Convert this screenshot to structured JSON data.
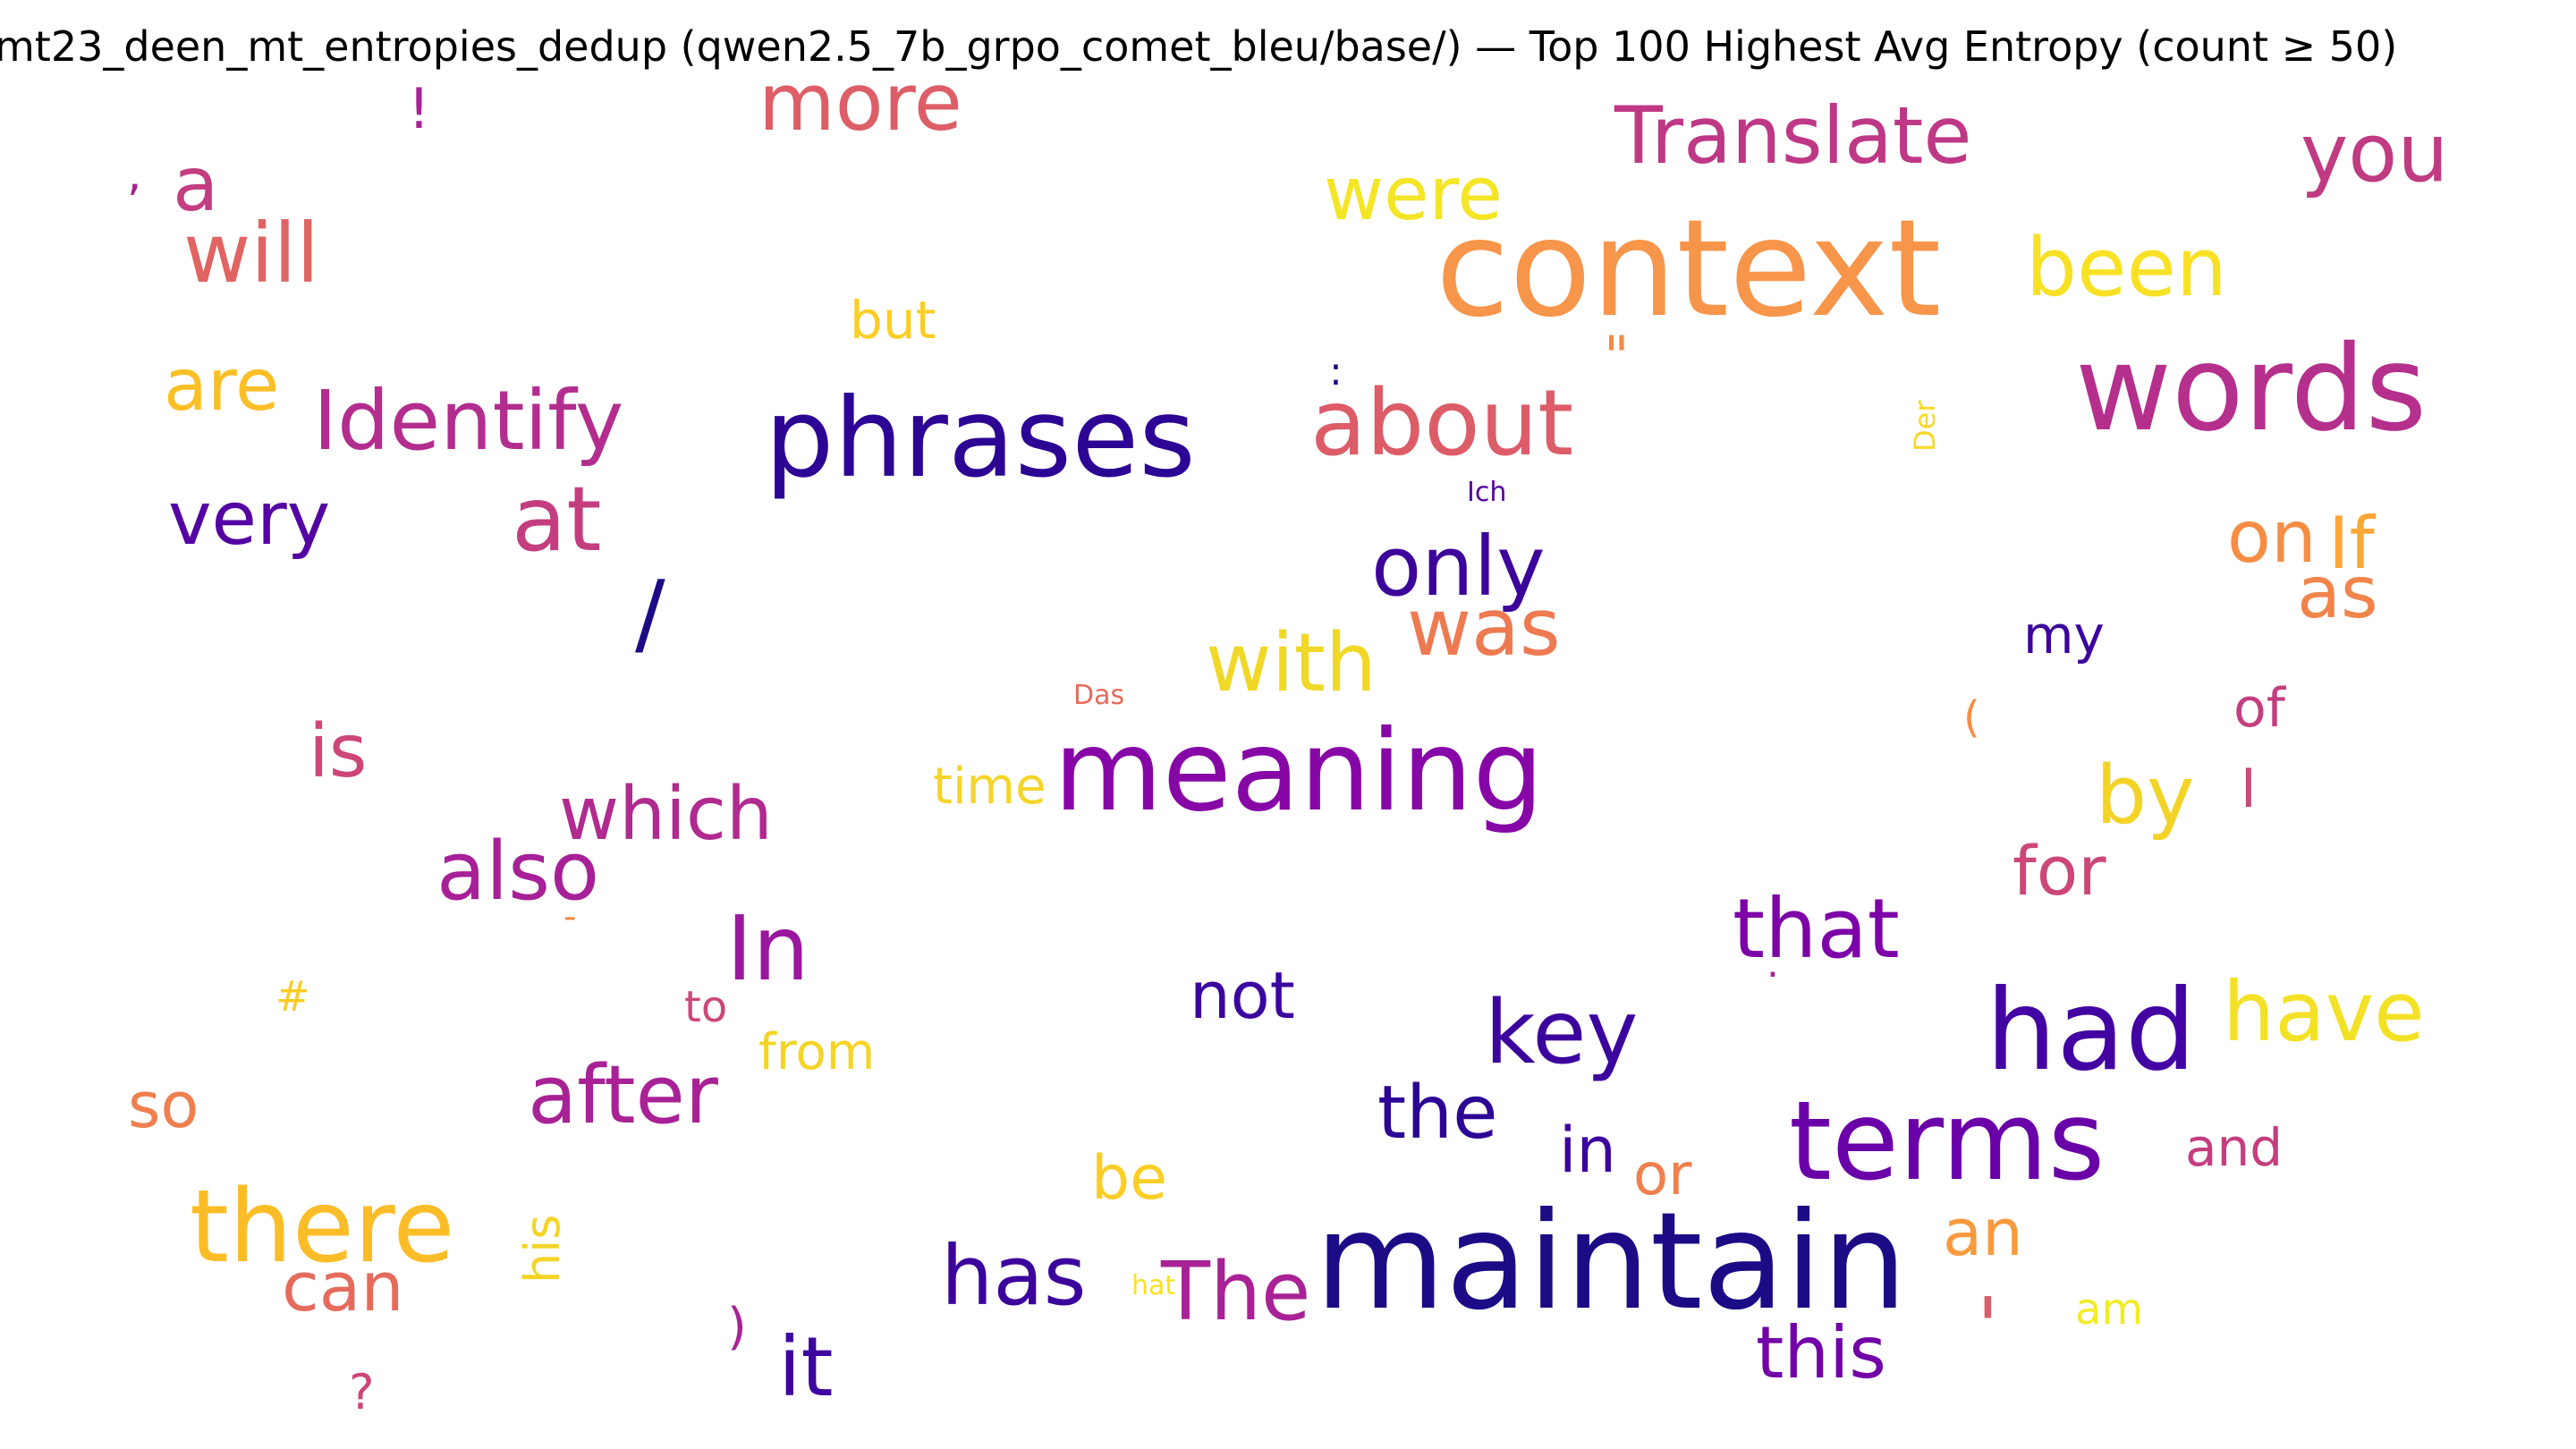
{
  "chart_data": {
    "type": "wordcloud",
    "title": "mt23_deen_mt_entropies_dedup (qwen2.5_7b_grpo_comet_bleu/base/) — Top 100 Highest Avg Entropy (count ≥ 50)",
    "colormap": "plasma",
    "words": [
      {
        "text": "maintain",
        "color": "#1b0c86"
      },
      {
        "text": "context",
        "color": "#f7954a"
      },
      {
        "text": "phrases",
        "color": "#2c0594"
      },
      {
        "text": "words",
        "color": "#b52f8c"
      },
      {
        "text": "meaning",
        "color": "#8707a6"
      },
      {
        "text": "terms",
        "color": "#6a00a8"
      },
      {
        "text": "had",
        "color": "#4303a3"
      },
      {
        "text": "there",
        "color": "#fbbd27"
      },
      {
        "text": "about",
        "color": "#dc5c68"
      },
      {
        "text": "Identify",
        "color": "#b32d8e"
      },
      {
        "text": "Translate",
        "color": "#be3885"
      },
      {
        "text": "key",
        "color": "#3c049e"
      },
      {
        "text": "at",
        "color": "#c43e7f"
      },
      {
        "text": "In",
        "color": "#9b179e"
      },
      {
        "text": "only",
        "color": "#3d049b"
      },
      {
        "text": "that",
        "color": "#7c02a7"
      },
      {
        "text": "will",
        "color": "#e16462"
      },
      {
        "text": "have",
        "color": "#f3e125"
      },
      {
        "text": "you",
        "color": "#c13b82"
      },
      {
        "text": "been",
        "color": "#f8e125"
      },
      {
        "text": "with",
        "color": "#f0d826"
      },
      {
        "text": "has",
        "color": "#3b049d"
      },
      {
        "text": "after",
        "color": "#a82296"
      },
      {
        "text": "The",
        "color": "#a82296"
      },
      {
        "text": "also",
        "color": "#a62097"
      },
      {
        "text": "was",
        "color": "#ee7a51"
      },
      {
        "text": "which",
        "color": "#b02a8f"
      },
      {
        "text": "very",
        "color": "#5402a3"
      },
      {
        "text": "by",
        "color": "#f3d326"
      },
      {
        "text": "were",
        "color": "#f4e526"
      },
      {
        "text": "more",
        "color": "#dd5e66"
      },
      {
        "text": "it",
        "color": "#3f049f"
      },
      {
        "text": "this",
        "color": "#7201a8"
      },
      {
        "text": "the",
        "color": "#2c0594"
      },
      {
        "text": "is",
        "color": "#cc4778"
      },
      {
        "text": "are",
        "color": "#fbbe24"
      },
      {
        "text": "can",
        "color": "#e56b5d"
      },
      {
        "text": "on",
        "color": "#f68d45"
      },
      {
        "text": "If",
        "color": "#fca636"
      },
      {
        "text": "as",
        "color": "#f1844b"
      },
      {
        "text": "a",
        "color": "#c33d80"
      },
      {
        "text": "an",
        "color": "#f99a3e"
      },
      {
        "text": "for",
        "color": "#cc4778"
      },
      {
        "text": "not",
        "color": "#3c049e"
      },
      {
        "text": "/",
        "color": "#1b0c86"
      },
      {
        "text": "in",
        "color": "#3c049e"
      },
      {
        "text": "so",
        "color": "#ef7f4f"
      },
      {
        "text": "be",
        "color": "#fccd25"
      },
      {
        "text": "or",
        "color": "#f0804e"
      },
      {
        "text": "and",
        "color": "#c43e7f"
      },
      {
        "text": "my",
        "color": "#3c049e"
      },
      {
        "text": "but",
        "color": "#fccd25"
      },
      {
        "text": "from",
        "color": "#f4d426"
      },
      {
        "text": "time",
        "color": "#f4d426"
      },
      {
        "text": "of",
        "color": "#c43e7f"
      },
      {
        "text": "his",
        "color": "#f4d426"
      },
      {
        "text": "am",
        "color": "#f0ec25"
      },
      {
        "text": "to",
        "color": "#cc4778"
      },
      {
        "text": "'",
        "color": "#dc5c68"
      },
      {
        "text": "\"",
        "color": "#f58c46"
      },
      {
        "text": "I",
        "color": "#cc4778"
      },
      {
        "text": "!",
        "color": "#a82296"
      },
      {
        "text": "?",
        "color": "#cc4778"
      },
      {
        "text": ")",
        "color": "#a82296"
      },
      {
        "text": "(",
        "color": "#f58c46"
      },
      {
        "text": "#",
        "color": "#fccd25"
      },
      {
        "text": "Das",
        "color": "#e56b5d"
      },
      {
        "text": "Ich",
        "color": "#5402a3"
      },
      {
        "text": "Der",
        "color": "#f9d825"
      },
      {
        "text": "hat",
        "color": "#f8e125"
      },
      {
        "text": ",",
        "color": "#a82296"
      },
      {
        "text": "-",
        "color": "#f58c46"
      },
      {
        "text": ":",
        "color": "#1b0c86"
      },
      {
        "text": ".",
        "color": "#a82296"
      }
    ]
  }
}
